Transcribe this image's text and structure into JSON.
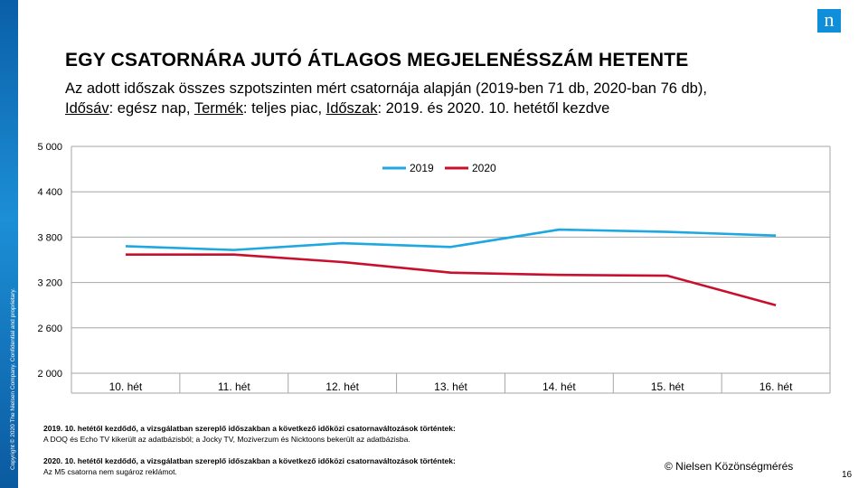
{
  "branding": {
    "logo_letter": "n",
    "copyright": "Copyright © 2020 The Nielsen Company. Confidential and proprietary.",
    "source": "© Nielsen Közönségmérés",
    "page_number": "16",
    "brand_color": "#0f8fd9"
  },
  "header": {
    "title": "EGY CSATORNÁRA JUTÓ ÁTLAGOS MEGJELENÉSSZÁM HETENTE",
    "subtitle_line1": "Az adott időszak összes szpotszinten mért csatornája alapján (2019-ben 71 db, 2020-ban 76 db),",
    "label_time": "Idősáv",
    "text_time": ": egész nap, ",
    "label_product": "Termék",
    "text_product": ": teljes piac, ",
    "label_period": "Időszak",
    "text_period": ": 2019. és 2020. 10. hetétől kezdve"
  },
  "chart_data": {
    "type": "line",
    "categories": [
      "10. hét",
      "11. hét",
      "12. hét",
      "13. hét",
      "14. hét",
      "15. hét",
      "16. hét"
    ],
    "series": [
      {
        "name": "2019",
        "color": "#1ea7e0",
        "values": [
          3680,
          3630,
          3720,
          3670,
          3900,
          3870,
          3820
        ]
      },
      {
        "name": "2020",
        "color": "#c8102e",
        "values": [
          3570,
          3570,
          3470,
          3330,
          3300,
          3290,
          2900
        ]
      }
    ],
    "ylim": [
      2000,
      5000
    ],
    "yticks": [
      2000,
      2600,
      3200,
      3800,
      4400,
      5000
    ],
    "ytick_labels": [
      "2 000",
      "2 600",
      "3 200",
      "3 800",
      "4 400",
      "5 000"
    ],
    "grid": true,
    "legend": "top-center"
  },
  "notes": {
    "note1_title": "2019. 10. hetétől kezdődő, a vizsgálatban szereplő időszakban a következő időközi csatornaváltozások történtek",
    "note1_text": "A DOQ és Echo TV kikerült az adatbázisból; a Jocky TV, Moziverzum és Nicktoons bekerült az adatbázisba.",
    "note2_title": "2020. 10. hetétől kezdődő, a vizsgálatban szereplő időszakban a következő időközi csatornaváltozások történtek",
    "note2_text": "Az M5 csatorna nem sugároz reklámot."
  }
}
